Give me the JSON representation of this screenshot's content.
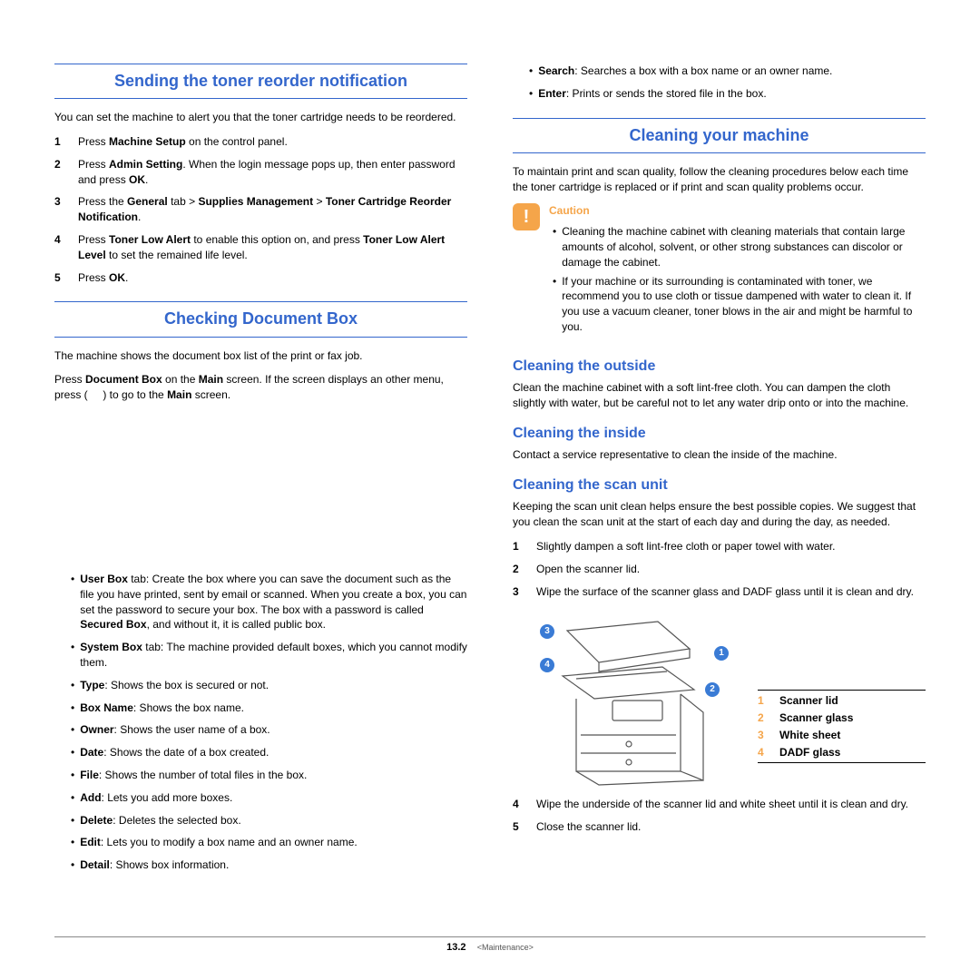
{
  "colors": {
    "heading_blue": "#3366cc",
    "caution_orange": "#f5a54a",
    "callout_blue": "#3a7bd5",
    "black": "#000000"
  },
  "left": {
    "section1": {
      "title": "Sending the toner reorder notification",
      "intro": "You can set the machine to alert you that the toner cartridge needs to be reordered.",
      "steps": [
        {
          "n": "1",
          "html": "Press <b>Machine Setup</b> on the control panel."
        },
        {
          "n": "2",
          "html": "Press <b>Admin Setting</b>. When the login message pops up, then enter password and press <b>OK</b>."
        },
        {
          "n": "3",
          "html": "Press the <b>General</b> tab > <b>Supplies Management</b> > <b>Toner Cartridge Reorder Notification</b>."
        },
        {
          "n": "4",
          "html": "Press <b>Toner Low Alert</b> to enable this option on, and press <b>Toner Low Alert Level</b> to set the remained life level."
        },
        {
          "n": "5",
          "html": "Press <b>OK</b>."
        }
      ]
    },
    "section2": {
      "title": "Checking Document Box",
      "p1": "The machine shows the document box list of the print or fax job.",
      "p2_html": "Press <b>Document Box</b> on the <b>Main</b> screen. If the screen displays an other menu, press (     ) to go to the <b>Main</b> screen.",
      "bullets": [
        "<b>User Box</b> tab: Create the box where you can save the document such as the file you have printed, sent by email or scanned. When you create a box, you can set the password to secure your box. The box with a password is called <b>Secured Box</b>, and without it, it is called public box.",
        "<b>System Box</b> tab: The machine provided default boxes, which you cannot modify them.",
        "<b>Type</b>: Shows the box is secured or not.",
        "<b>Box Name</b>: Shows the box name.",
        "<b>Owner</b>: Shows the user name of a box.",
        "<b>Date</b>: Shows the date of a box created.",
        "<b>File</b>: Shows the number of total files in the box.",
        "<b>Add</b>: Lets you add more boxes.",
        "<b>Delete</b>: Deletes the selected box.",
        "<b>Edit</b>: Lets you to modify a box name and an owner name.",
        "<b>Detail</b>: Shows box information."
      ]
    }
  },
  "right": {
    "top_bullets": [
      "<b>Search</b>: Searches a box with a box name or an owner name.",
      "<b>Enter</b>: Prints or sends the stored file in the box."
    ],
    "section1": {
      "title": "Cleaning your machine",
      "intro": "To maintain print and scan quality, follow the cleaning procedures below each time the toner cartridge is replaced or if print and scan quality problems occur.",
      "caution_label": "Caution",
      "caution_bullets": [
        "Cleaning the machine cabinet with cleaning materials that contain large amounts of alcohol, solvent, or other strong substances can discolor or damage the cabinet.",
        "If your machine or its surrounding is contaminated with toner, we recommend you to use cloth or tissue dampened with water to clean it. If you use a vacuum cleaner, toner blows in the air and might be harmful to you."
      ]
    },
    "h_outside": "Cleaning the outside",
    "p_outside": "Clean the machine cabinet with a soft lint-free cloth. You can dampen the cloth slightly with water, but be careful not to let any water drip onto or into the machine.",
    "h_inside": "Cleaning the inside",
    "p_inside": "Contact a service representative to clean the inside of the machine.",
    "h_scan": "Cleaning the scan unit",
    "p_scan": "Keeping the scan unit clean helps ensure the best possible copies. We suggest that you clean the scan unit at the start of each day and during the day, as needed.",
    "scan_steps_a": [
      {
        "n": "1",
        "html": "Slightly dampen a soft lint-free cloth or paper towel with water."
      },
      {
        "n": "2",
        "html": "Open the scanner lid."
      },
      {
        "n": "3",
        "html": "Wipe the surface of the scanner glass and DADF glass until it is clean and dry."
      }
    ],
    "legend": [
      {
        "n": "1",
        "label": "Scanner lid"
      },
      {
        "n": "2",
        "label": "Scanner glass"
      },
      {
        "n": "3",
        "label": "White sheet"
      },
      {
        "n": "4",
        "label": "DADF glass"
      }
    ],
    "scan_steps_b": [
      {
        "n": "4",
        "html": "Wipe the underside of the scanner lid and white sheet until it is clean and dry."
      },
      {
        "n": "5",
        "html": "Close the scanner lid."
      }
    ]
  },
  "footer": {
    "page": "13.2",
    "section": "<Maintenance>"
  }
}
